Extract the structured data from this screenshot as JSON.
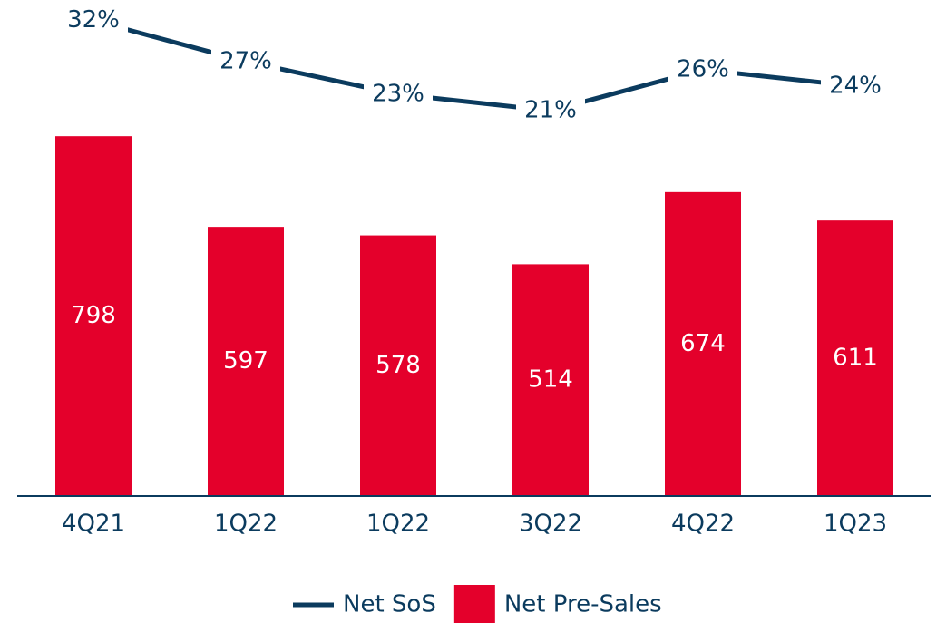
{
  "chart_data": {
    "type": "bar_line",
    "categories": [
      "4Q21",
      "1Q22",
      "1Q22",
      "3Q22",
      "4Q22",
      "1Q23"
    ],
    "series": [
      {
        "name": "Net Pre-Sales",
        "type": "bar",
        "color": "#e4002b",
        "values": [
          798,
          597,
          578,
          514,
          674,
          611
        ]
      },
      {
        "name": "Net SoS",
        "type": "line",
        "axis": "y2",
        "color": "#0b3b5e",
        "values": [
          32,
          27,
          23,
          21,
          26,
          24
        ],
        "value_labels": [
          "32%",
          "27%",
          "23%",
          "21%",
          "26%",
          "24%"
        ]
      }
    ],
    "ylim": [
      0,
      1100
    ],
    "y2lim": [
      -26,
      34.5
    ],
    "legend": "bottom"
  }
}
